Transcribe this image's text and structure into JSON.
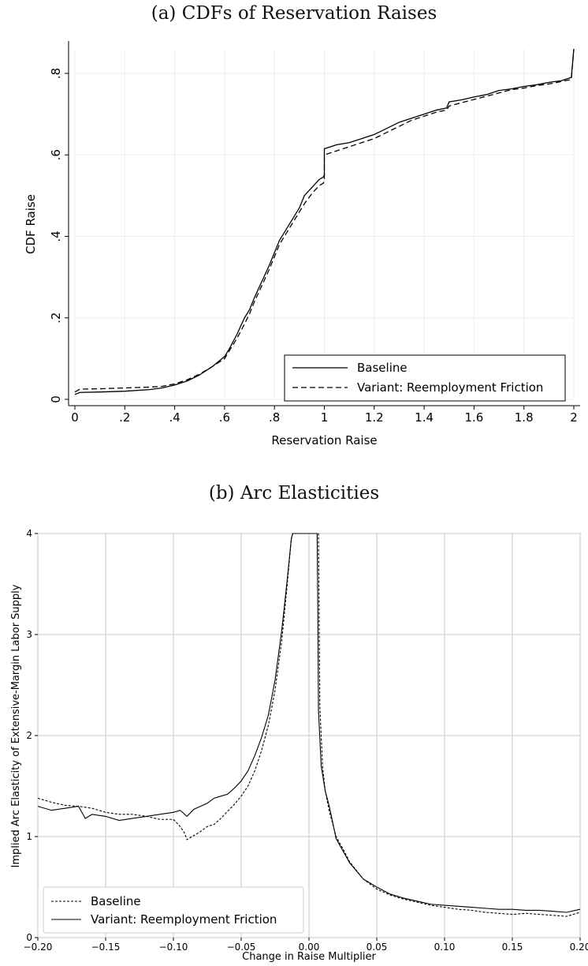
{
  "chart_data": [
    {
      "caption": "(a) CDFs of Reservation Raises",
      "type": "line",
      "xlabel": "Reservation Raise",
      "ylabel": "CDF Raise",
      "xlim": [
        0,
        2
      ],
      "ylim": [
        0,
        0.86
      ],
      "xticks": [
        0,
        0.2,
        0.4,
        0.6,
        0.8,
        1,
        1.2,
        1.4,
        1.6,
        1.8,
        2
      ],
      "xtick_labels": [
        "0",
        ".2",
        ".4",
        ".6",
        ".8",
        "1",
        "1.2",
        "1.4",
        "1.6",
        "1.8",
        "2"
      ],
      "yticks": [
        0,
        0.2,
        0.4,
        0.6,
        0.8
      ],
      "ytick_labels": [
        "0",
        ".2",
        ".4",
        ".6",
        ".8"
      ],
      "grid": true,
      "legend_position": "bottom-right",
      "series": [
        {
          "name": "Baseline",
          "style": "solid",
          "x": [
            0,
            0.02,
            0.1,
            0.2,
            0.3,
            0.35,
            0.4,
            0.45,
            0.5,
            0.55,
            0.6,
            0.62,
            0.65,
            0.68,
            0.7,
            0.72,
            0.75,
            0.78,
            0.8,
            0.82,
            0.85,
            0.88,
            0.9,
            0.92,
            0.95,
            0.98,
            0.995,
            1.0,
            1.0,
            1.05,
            1.1,
            1.15,
            1.2,
            1.25,
            1.3,
            1.35,
            1.4,
            1.45,
            1.49,
            1.5,
            1.55,
            1.6,
            1.65,
            1.7,
            1.75,
            1.8,
            1.85,
            1.9,
            1.95,
            1.99,
            2.0
          ],
          "y": [
            0.012,
            0.017,
            0.018,
            0.02,
            0.024,
            0.028,
            0.035,
            0.045,
            0.06,
            0.08,
            0.105,
            0.125,
            0.16,
            0.2,
            0.22,
            0.25,
            0.29,
            0.33,
            0.36,
            0.39,
            0.42,
            0.45,
            0.47,
            0.5,
            0.52,
            0.54,
            0.545,
            0.55,
            0.615,
            0.625,
            0.63,
            0.64,
            0.65,
            0.665,
            0.68,
            0.69,
            0.7,
            0.71,
            0.715,
            0.73,
            0.735,
            0.742,
            0.748,
            0.758,
            0.762,
            0.768,
            0.772,
            0.778,
            0.782,
            0.79,
            0.865
          ]
        },
        {
          "name": "Variant: Reemployment Friction",
          "style": "dashed",
          "x": [
            0,
            0.02,
            0.1,
            0.2,
            0.3,
            0.35,
            0.4,
            0.45,
            0.5,
            0.55,
            0.6,
            0.62,
            0.65,
            0.68,
            0.7,
            0.72,
            0.75,
            0.78,
            0.8,
            0.82,
            0.85,
            0.88,
            0.9,
            0.92,
            0.95,
            0.98,
            0.995,
            1.0,
            1.0,
            1.05,
            1.1,
            1.15,
            1.2,
            1.25,
            1.3,
            1.35,
            1.4,
            1.45,
            1.49,
            1.5,
            1.55,
            1.6,
            1.65,
            1.7,
            1.75,
            1.8,
            1.85,
            1.9,
            1.95,
            1.99,
            2.0
          ],
          "y": [
            0.018,
            0.025,
            0.026,
            0.028,
            0.03,
            0.032,
            0.038,
            0.048,
            0.062,
            0.08,
            0.1,
            0.12,
            0.15,
            0.185,
            0.21,
            0.24,
            0.28,
            0.32,
            0.35,
            0.38,
            0.41,
            0.44,
            0.46,
            0.48,
            0.505,
            0.525,
            0.53,
            0.535,
            0.6,
            0.61,
            0.62,
            0.63,
            0.64,
            0.655,
            0.67,
            0.685,
            0.695,
            0.705,
            0.71,
            0.72,
            0.728,
            0.736,
            0.744,
            0.752,
            0.76,
            0.764,
            0.77,
            0.774,
            0.78,
            0.785,
            0.86
          ]
        }
      ]
    },
    {
      "caption": "(b) Arc Elasticities",
      "type": "line",
      "xlabel": "Change in Raise Multiplier",
      "ylabel": "Implied Arc Elasticity of Extensive-Margin Labor Supply",
      "xlim": [
        -0.2,
        0.2
      ],
      "ylim": [
        0,
        4
      ],
      "xticks": [
        -0.2,
        -0.15,
        -0.1,
        -0.05,
        0,
        0.05,
        0.1,
        0.15,
        0.2
      ],
      "xtick_labels": [
        "−0.20",
        "−0.15",
        "−0.10",
        "−0.05",
        "0.00",
        "0.05",
        "0.10",
        "0.15",
        "0.20"
      ],
      "yticks": [
        0,
        1,
        2,
        3,
        4
      ],
      "ytick_labels": [
        "0",
        "1",
        "2",
        "3",
        "4"
      ],
      "grid": true,
      "legend_position": "bottom-left",
      "series": [
        {
          "name": "Baseline",
          "style": "dotted",
          "x": [
            -0.2,
            -0.19,
            -0.18,
            -0.17,
            -0.16,
            -0.15,
            -0.14,
            -0.13,
            -0.12,
            -0.11,
            -0.1,
            -0.095,
            -0.092,
            -0.09,
            -0.085,
            -0.08,
            -0.075,
            -0.07,
            -0.065,
            -0.06,
            -0.055,
            -0.05,
            -0.045,
            -0.04,
            -0.035,
            -0.03,
            -0.025,
            -0.02,
            -0.016,
            -0.013,
            -0.012,
            0.007,
            0.0075,
            0.008,
            0.01,
            0.012,
            0.015,
            0.02,
            0.025,
            0.03,
            0.04,
            0.05,
            0.06,
            0.07,
            0.08,
            0.09,
            0.1,
            0.11,
            0.12,
            0.13,
            0.14,
            0.15,
            0.16,
            0.17,
            0.18,
            0.19,
            0.2
          ],
          "y": [
            1.38,
            1.34,
            1.31,
            1.3,
            1.28,
            1.24,
            1.22,
            1.22,
            1.2,
            1.17,
            1.17,
            1.1,
            1.04,
            0.97,
            1.01,
            1.05,
            1.1,
            1.12,
            1.18,
            1.25,
            1.32,
            1.4,
            1.5,
            1.65,
            1.85,
            2.1,
            2.45,
            2.95,
            3.5,
            3.95,
            4.0,
            4.0,
            3.2,
            2.3,
            1.7,
            1.45,
            1.25,
            1.0,
            0.88,
            0.75,
            0.58,
            0.48,
            0.42,
            0.38,
            0.35,
            0.32,
            0.3,
            0.28,
            0.27,
            0.25,
            0.24,
            0.23,
            0.24,
            0.23,
            0.22,
            0.21,
            0.25
          ]
        },
        {
          "name": "Variant: Reemployment Friction",
          "style": "solid",
          "x": [
            -0.2,
            -0.19,
            -0.18,
            -0.17,
            -0.165,
            -0.16,
            -0.15,
            -0.14,
            -0.13,
            -0.12,
            -0.11,
            -0.1,
            -0.095,
            -0.09,
            -0.085,
            -0.08,
            -0.075,
            -0.07,
            -0.065,
            -0.06,
            -0.055,
            -0.05,
            -0.045,
            -0.04,
            -0.035,
            -0.03,
            -0.025,
            -0.02,
            -0.016,
            -0.013,
            -0.012,
            0.006,
            0.0065,
            0.007,
            0.009,
            0.012,
            0.015,
            0.02,
            0.025,
            0.03,
            0.04,
            0.05,
            0.06,
            0.07,
            0.08,
            0.09,
            0.1,
            0.11,
            0.12,
            0.13,
            0.14,
            0.15,
            0.16,
            0.17,
            0.18,
            0.19,
            0.2
          ],
          "y": [
            1.3,
            1.26,
            1.28,
            1.3,
            1.18,
            1.22,
            1.2,
            1.16,
            1.18,
            1.2,
            1.22,
            1.24,
            1.26,
            1.2,
            1.27,
            1.3,
            1.33,
            1.38,
            1.4,
            1.42,
            1.48,
            1.55,
            1.65,
            1.8,
            1.98,
            2.2,
            2.55,
            3.05,
            3.55,
            3.95,
            4.0,
            4.0,
            3.3,
            2.25,
            1.7,
            1.45,
            1.3,
            0.98,
            0.86,
            0.74,
            0.58,
            0.5,
            0.43,
            0.39,
            0.36,
            0.33,
            0.32,
            0.31,
            0.3,
            0.29,
            0.28,
            0.28,
            0.27,
            0.27,
            0.26,
            0.25,
            0.28
          ]
        }
      ]
    }
  ]
}
